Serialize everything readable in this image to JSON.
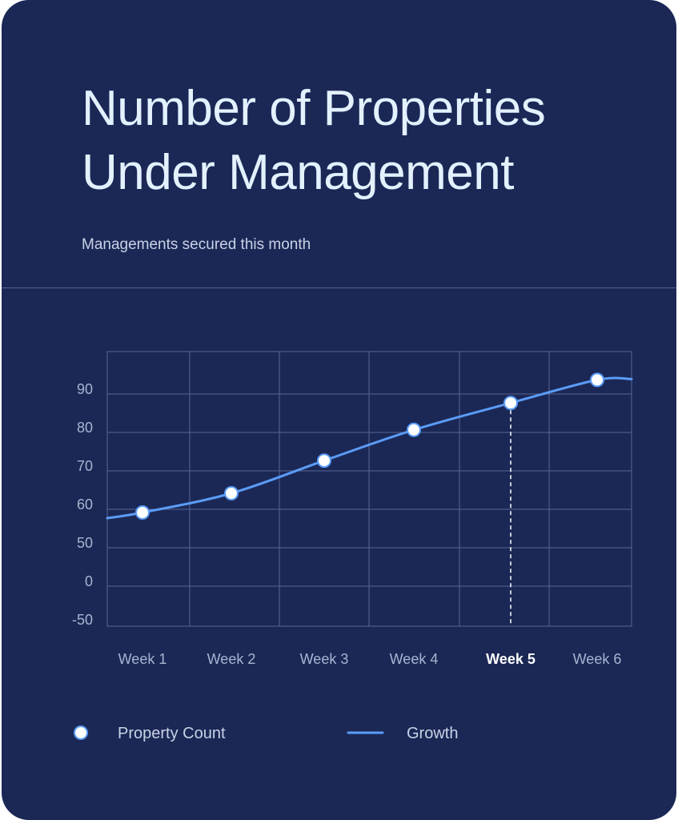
{
  "card": {
    "title": "Number of Properties Under Management",
    "subtitle": "Managements secured this month"
  },
  "colors": {
    "background": "#1b2856",
    "title": "#e3f1ff",
    "line": "#5b9cf6",
    "grid": "#5a6590",
    "marker_fill": "#ffffff"
  },
  "chart_data": {
    "type": "line",
    "title": "Number of Properties Under Management",
    "subtitle": "Managements secured this month",
    "categories": [
      "Week 1",
      "Week 2",
      "Week 3",
      "Week 4",
      "Week 5",
      "Week 6"
    ],
    "y_ticks": [
      "90",
      "80",
      "70",
      "60",
      "50",
      "0",
      "-50"
    ],
    "series": [
      {
        "name": "Property Count",
        "kind": "markers",
        "values": [
          57.5,
          62.5,
          71,
          79,
          86,
          92
        ]
      },
      {
        "name": "Growth",
        "kind": "line",
        "values": [
          57.5,
          62.5,
          71,
          79,
          86,
          92
        ]
      }
    ],
    "highlighted_category": "Week 5",
    "legend": [
      {
        "label": "Property Count",
        "symbol": "circle"
      },
      {
        "label": "Growth",
        "symbol": "line"
      }
    ],
    "legend_position": "bottom",
    "grid": true
  }
}
